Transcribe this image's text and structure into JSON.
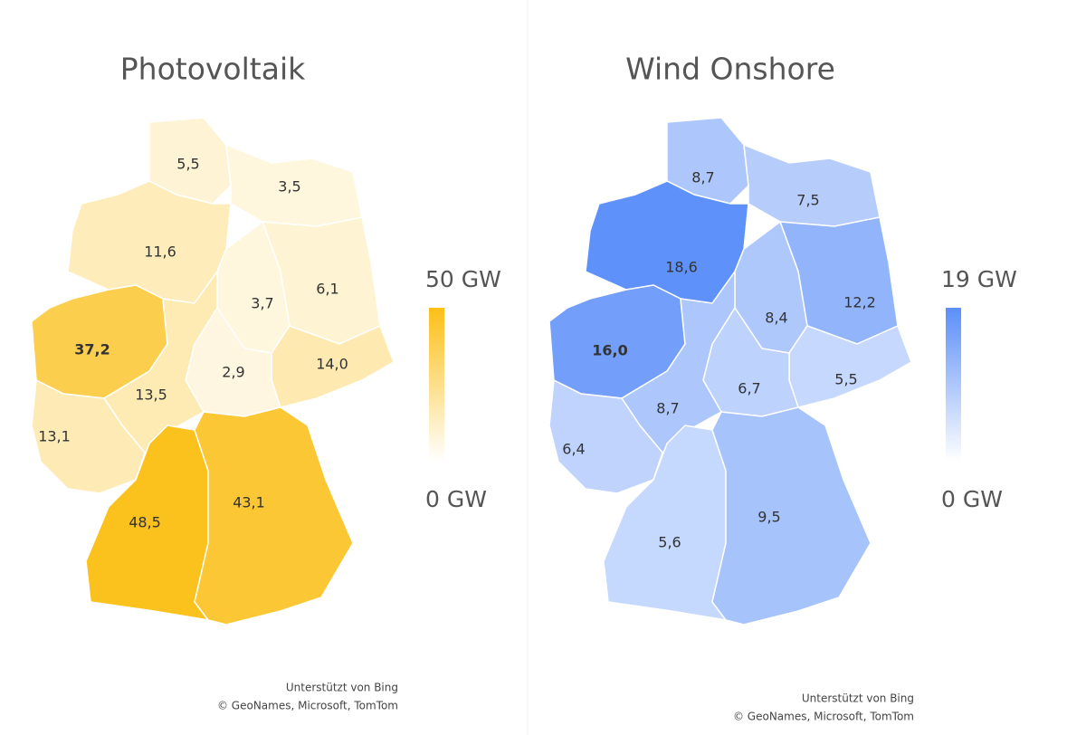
{
  "maps": [
    {
      "title": "Photovoltaik",
      "color": "#fbbf17",
      "legend": {
        "max": {
          "value": 50,
          "label": "50 GW"
        },
        "min": {
          "value": 0,
          "label": "0 GW"
        }
      },
      "regions": [
        {
          "value": 5.5,
          "label": "5,5"
        },
        {
          "value": 3.5,
          "label": "3,5"
        },
        {
          "value": 11.6,
          "label": "11,6"
        },
        {
          "value": 6.1,
          "label": "6,1"
        },
        {
          "value": 3.7,
          "label": "3,7"
        },
        {
          "value": 37.2,
          "label": "37,2"
        },
        {
          "value": 14.0,
          "label": "14,0"
        },
        {
          "value": 2.9,
          "label": "2,9"
        },
        {
          "value": 13.5,
          "label": "13,5"
        },
        {
          "value": 13.1,
          "label": "13,1"
        },
        {
          "value": 48.5,
          "label": "48,5"
        },
        {
          "value": 43.1,
          "label": "43,1"
        }
      ],
      "attribution": [
        "Unterstützt von Bing",
        "© GeoNames, Microsoft, TomTom"
      ]
    },
    {
      "title": "Wind Onshore",
      "color": "#5b8ff9",
      "legend": {
        "max": {
          "value": 19,
          "label": "19 GW"
        },
        "min": {
          "value": 0,
          "label": "0 GW"
        }
      },
      "regions": [
        {
          "value": 8.7,
          "label": "8,7"
        },
        {
          "value": 7.5,
          "label": "7,5"
        },
        {
          "value": 18.6,
          "label": "18,6"
        },
        {
          "value": 12.2,
          "label": "12,2"
        },
        {
          "value": 8.4,
          "label": "8,4"
        },
        {
          "value": 16.0,
          "label": "16,0"
        },
        {
          "value": 5.5,
          "label": "5,5"
        },
        {
          "value": 6.7,
          "label": "6,7"
        },
        {
          "value": 8.7,
          "label": "8,7"
        },
        {
          "value": 6.4,
          "label": "6,4"
        },
        {
          "value": 5.6,
          "label": "5,6"
        },
        {
          "value": 9.5,
          "label": "9,5"
        }
      ],
      "attribution": [
        "Unterstützt von Bing",
        "© GeoNames, Microsoft, TomTom"
      ]
    }
  ]
}
